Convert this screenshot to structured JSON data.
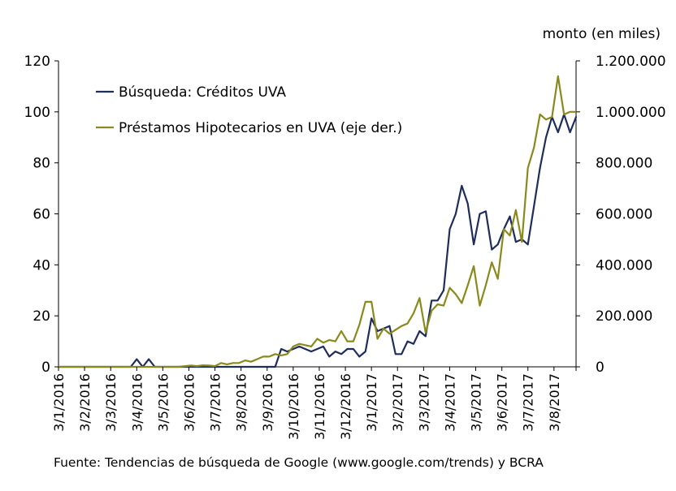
{
  "chart_data": {
    "type": "line",
    "right_axis_title": "monto (en miles)",
    "source_note": "Fuente: Tendencias de búsqueda de Google (www.google.com/trends) y BCRA",
    "left_axis": {
      "min": 0,
      "max": 120,
      "ticks": [
        0,
        20,
        40,
        60,
        80,
        100,
        120
      ],
      "tick_labels": [
        "0",
        "20",
        "40",
        "60",
        "80",
        "100",
        "120"
      ]
    },
    "right_axis": {
      "min": 0,
      "max": 1200000,
      "ticks": [
        0,
        200000,
        400000,
        600000,
        800000,
        1000000,
        1200000
      ],
      "tick_labels": [
        "0",
        "200.000",
        "400.000",
        "600.000",
        "800.000",
        "1.000.000",
        "1.200.000"
      ]
    },
    "x_range": [
      0,
      86
    ],
    "x_ticks": [
      0,
      4.33,
      8.67,
      13,
      17.33,
      21.67,
      26,
      30.33,
      34.67,
      39,
      43.33,
      47.67,
      52,
      56.33,
      60.67,
      65,
      69.33,
      73.67,
      78,
      82.33,
      86
    ],
    "x_tick_labels": [
      "3/1/2016",
      "3/2/2016",
      "3/3/2016",
      "3/4/2016",
      "3/5/2016",
      "3/6/2016",
      "3/7/2016",
      "3/8/2016",
      "3/9/2016",
      "3/10/2016",
      "3/11/2016",
      "3/12/2016",
      "3/1/2017",
      "3/2/2017",
      "3/3/2017",
      "3/4/2017",
      "3/5/2017",
      "3/6/2017",
      "3/7/2017",
      "3/8/2017",
      ""
    ],
    "series": [
      {
        "name": "Búsqueda: Créditos UVA",
        "axis": "left",
        "color": "#1f2d5c",
        "x": [
          0,
          1,
          2,
          3,
          4,
          5,
          6,
          7,
          8,
          9,
          10,
          11,
          12,
          13,
          14,
          15,
          16,
          17,
          18,
          19,
          20,
          21,
          22,
          23,
          24,
          25,
          26,
          27,
          28,
          29,
          30,
          31,
          32,
          33,
          34,
          35,
          36,
          37,
          38,
          39,
          40,
          41,
          42,
          43,
          44,
          45,
          46,
          47,
          48,
          49,
          50,
          51,
          52,
          53,
          54,
          55,
          56,
          57,
          58,
          59,
          60,
          61,
          62,
          63,
          64,
          65,
          66,
          67,
          68,
          69,
          70,
          71,
          72,
          73,
          74,
          75,
          76,
          77,
          78,
          79,
          80,
          81,
          82,
          83,
          84,
          85,
          86
        ],
        "values": [
          0,
          0,
          0,
          0,
          0,
          0,
          0,
          0,
          0,
          0,
          0,
          0,
          0,
          3,
          0,
          3,
          0,
          0,
          0,
          0,
          0,
          0,
          0,
          0,
          0,
          0,
          0,
          0,
          0,
          0,
          0,
          0,
          0,
          0,
          0,
          0,
          0,
          7,
          6,
          7,
          8,
          7,
          6,
          7,
          8,
          4,
          6,
          5,
          7,
          7,
          4,
          6,
          19,
          14,
          15,
          16,
          5,
          5,
          10,
          9,
          14,
          12,
          26,
          26,
          30,
          54,
          60,
          71,
          64,
          48,
          60,
          61,
          46,
          48,
          54,
          59,
          49,
          50,
          48,
          63,
          78,
          90,
          98,
          92,
          99,
          92,
          98
        ]
      },
      {
        "name": "Préstamos Hipotecarios en UVA (eje der.)",
        "axis": "right",
        "color": "#8a8a1c",
        "x": [
          0,
          2,
          4,
          6,
          8,
          10,
          12,
          14,
          16,
          18,
          20,
          22,
          23,
          24,
          25,
          26,
          27,
          28,
          29,
          30,
          31,
          32,
          33,
          34,
          35,
          36,
          37,
          38,
          39,
          40,
          41,
          42,
          43,
          44,
          45,
          46,
          47,
          48,
          49,
          50,
          51,
          52,
          53,
          54,
          55,
          56,
          57,
          58,
          59,
          60,
          61,
          62,
          63,
          64,
          65,
          66,
          67,
          68,
          69,
          70,
          71,
          72,
          73,
          74,
          75,
          76,
          77,
          78,
          79,
          80,
          81,
          82,
          83,
          84,
          85,
          86
        ],
        "values": [
          0,
          0,
          0,
          0,
          0,
          0,
          0,
          0,
          0,
          0,
          0,
          5000,
          3000,
          6000,
          5000,
          3000,
          15000,
          10000,
          15000,
          15000,
          25000,
          20000,
          30000,
          40000,
          40000,
          50000,
          45000,
          50000,
          80000,
          90000,
          85000,
          80000,
          110000,
          95000,
          105000,
          100000,
          140000,
          100000,
          100000,
          165000,
          255000,
          255000,
          110000,
          150000,
          130000,
          145000,
          160000,
          170000,
          210000,
          270000,
          135000,
          220000,
          245000,
          240000,
          310000,
          285000,
          250000,
          320000,
          395000,
          240000,
          320000,
          410000,
          345000,
          540000,
          515000,
          615000,
          490000,
          780000,
          860000,
          990000,
          970000,
          980000,
          1140000,
          990000,
          1000000,
          1000000
        ]
      }
    ]
  }
}
